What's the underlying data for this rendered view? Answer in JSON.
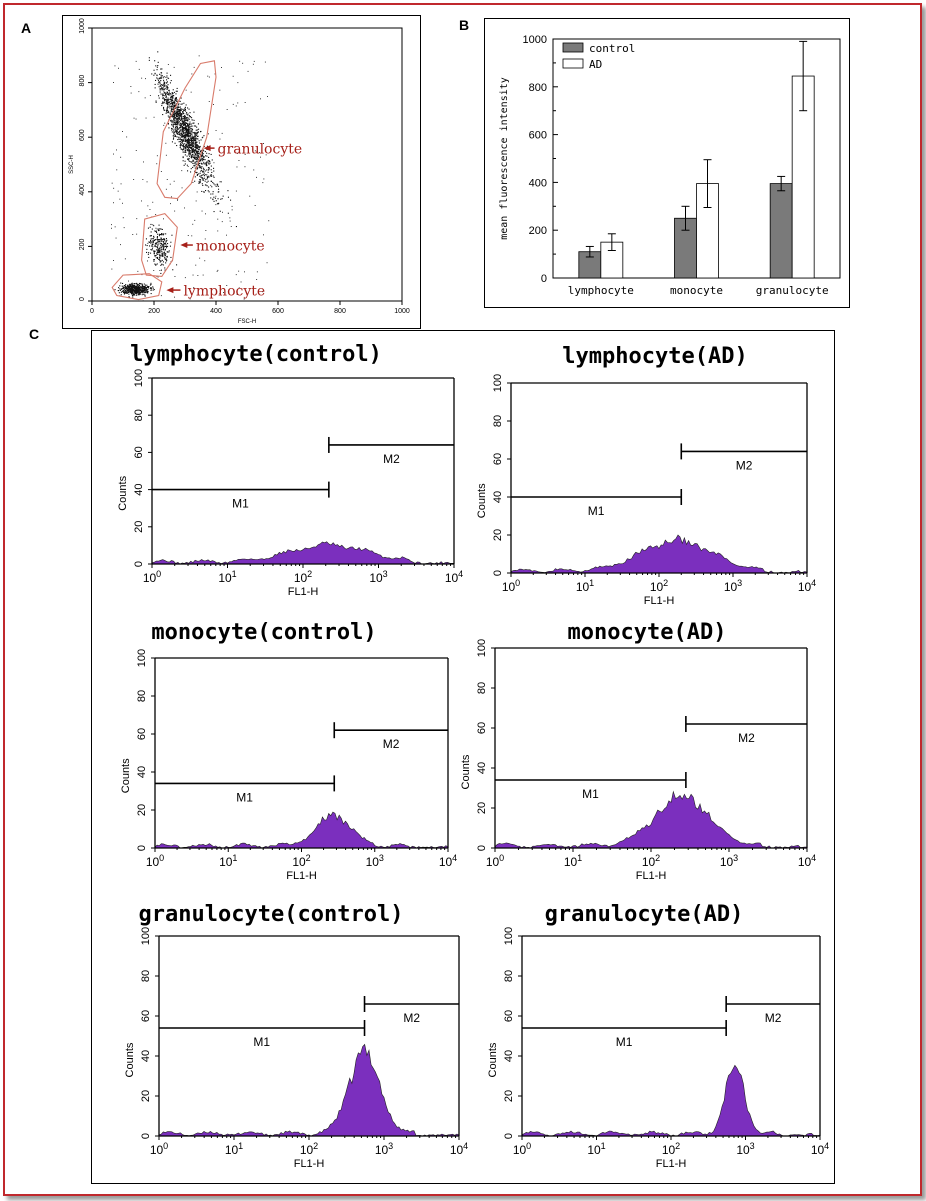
{
  "panel_labels": {
    "a": "A",
    "b": "B",
    "c": "C"
  },
  "colors": {
    "border": "#c0282d",
    "gate": "#d97b6b",
    "gate_label": "#a62019",
    "histogram": "#7b2fbe",
    "control_bar": "#7a7a7a",
    "ad_bar": "#ffffff"
  },
  "chart_data": [
    {
      "type": "scatter",
      "panel": "A",
      "xlabel": "FSC-H",
      "ylabel": "SSC-H",
      "xlim": [
        0,
        1000
      ],
      "ylim": [
        0,
        1000
      ],
      "xticks": [
        "0",
        "200",
        "400",
        "600",
        "800",
        "1000"
      ],
      "yticks": [
        "0",
        "200",
        "400",
        "600",
        "800",
        "1000"
      ],
      "gates": [
        {
          "name": "granulocyte",
          "fsc_range": [
            210,
            400
          ],
          "ssc_range": [
            370,
            880
          ]
        },
        {
          "name": "monocyte",
          "fsc_range": [
            160,
            280
          ],
          "ssc_range": [
            70,
            320
          ]
        },
        {
          "name": "lymphocyte",
          "fsc_range": [
            60,
            230
          ],
          "ssc_range": [
            5,
            100
          ]
        }
      ]
    },
    {
      "type": "bar",
      "panel": "B",
      "ylabel": "mean fluorescence intensity",
      "categories": [
        "lymphocyte",
        "monocyte",
        "granulocyte"
      ],
      "ylim": [
        0,
        1000
      ],
      "yticks": [
        "0",
        "200",
        "400",
        "600",
        "800",
        "1000"
      ],
      "legend_position": "top-left",
      "series": [
        {
          "name": "control",
          "values": [
            110,
            250,
            395
          ],
          "errors": [
            22,
            50,
            30
          ]
        },
        {
          "name": "AD",
          "values": [
            150,
            395,
            845
          ],
          "errors": [
            35,
            100,
            145
          ]
        }
      ]
    },
    {
      "type": "area",
      "panel": "C",
      "xlabel": "FL1-H",
      "ylabel": "Counts",
      "x_scale": "log",
      "xlim": [
        1,
        10000
      ],
      "ylim": [
        0,
        100
      ],
      "xticks_base": "10",
      "xticks_exp": [
        "0",
        "1",
        "2",
        "3",
        "4"
      ],
      "yticks": [
        "0",
        "20",
        "40",
        "60",
        "80",
        "100"
      ],
      "histograms": [
        {
          "title": "lymphocyte(control)",
          "m1_label": "M1",
          "m2_label": "M2",
          "m1_range": [
            1,
            220
          ],
          "m2_range": [
            220,
            10000
          ],
          "m1_level": 40,
          "m2_level": 64,
          "peak_x": 220,
          "peak_count": 9,
          "width": 0.33
        },
        {
          "title": "lymphocyte(AD)",
          "m1_label": "M1",
          "m2_label": "M2",
          "m1_range": [
            1,
            200
          ],
          "m2_range": [
            200,
            10000
          ],
          "m1_level": 40,
          "m2_level": 64,
          "peak_x": 170,
          "peak_count": 16,
          "width": 0.3
        },
        {
          "title": "monocyte(control)",
          "m1_label": "M1",
          "m2_label": "M2",
          "m1_range": [
            1,
            280
          ],
          "m2_range": [
            280,
            10000
          ],
          "m1_level": 34,
          "m2_level": 62,
          "peak_x": 270,
          "peak_count": 16,
          "width": 0.15
        },
        {
          "title": "monocyte(AD)",
          "m1_label": "M1",
          "m2_label": "M2",
          "m1_range": [
            1,
            280
          ],
          "m2_range": [
            280,
            10000
          ],
          "m1_level": 34,
          "m2_level": 62,
          "peak_x": 250,
          "peak_count": 25,
          "width": 0.22
        },
        {
          "title": "granulocyte(control)",
          "m1_label": "M1",
          "m2_label": "M2",
          "m1_range": [
            1,
            550
          ],
          "m2_range": [
            550,
            10000
          ],
          "m1_level": 54,
          "m2_level": 66,
          "peak_x": 550,
          "peak_count": 41,
          "width": 0.13
        },
        {
          "title": "granulocyte(AD)",
          "m1_label": "M1",
          "m2_label": "M2",
          "m1_range": [
            1,
            550
          ],
          "m2_range": [
            550,
            10000
          ],
          "m1_level": 54,
          "m2_level": 66,
          "peak_x": 720,
          "peak_count": 35,
          "width": 0.08
        }
      ]
    }
  ]
}
